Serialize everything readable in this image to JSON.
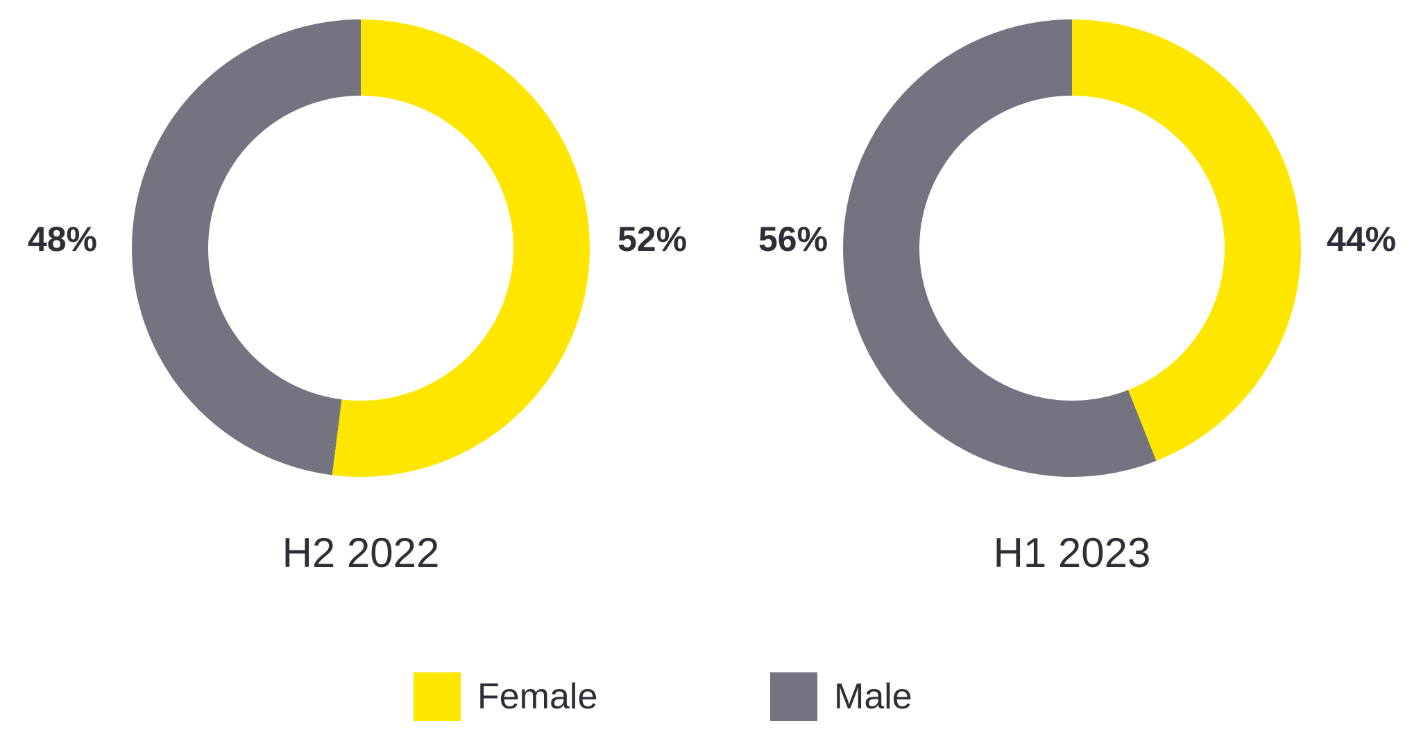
{
  "colors": {
    "female": "#FFE600",
    "male": "#747480",
    "text_dark": "#2E2E38",
    "background": "#FFFFFF"
  },
  "chart_data": [
    {
      "type": "pie",
      "subtype": "donut",
      "title": "H2 2022",
      "start_angle_deg": 0,
      "direction": "clockwise",
      "slices": [
        {
          "label": "Female",
          "value_pct": 52,
          "color_key": "female",
          "data_label": "52%",
          "data_label_side": "right"
        },
        {
          "label": "Male",
          "value_pct": 48,
          "color_key": "male",
          "data_label": "48%",
          "data_label_side": "left"
        }
      ]
    },
    {
      "type": "pie",
      "subtype": "donut",
      "title": "H1 2023",
      "start_angle_deg": 0,
      "direction": "clockwise",
      "slices": [
        {
          "label": "Female",
          "value_pct": 44,
          "color_key": "female",
          "data_label": "44%",
          "data_label_side": "right"
        },
        {
          "label": "Male",
          "value_pct": 56,
          "color_key": "male",
          "data_label": "56%",
          "data_label_side": "left"
        }
      ]
    }
  ],
  "legend": {
    "items": [
      {
        "label": "Female",
        "color_key": "female"
      },
      {
        "label": "Male",
        "color_key": "male"
      }
    ],
    "position": "bottom"
  }
}
